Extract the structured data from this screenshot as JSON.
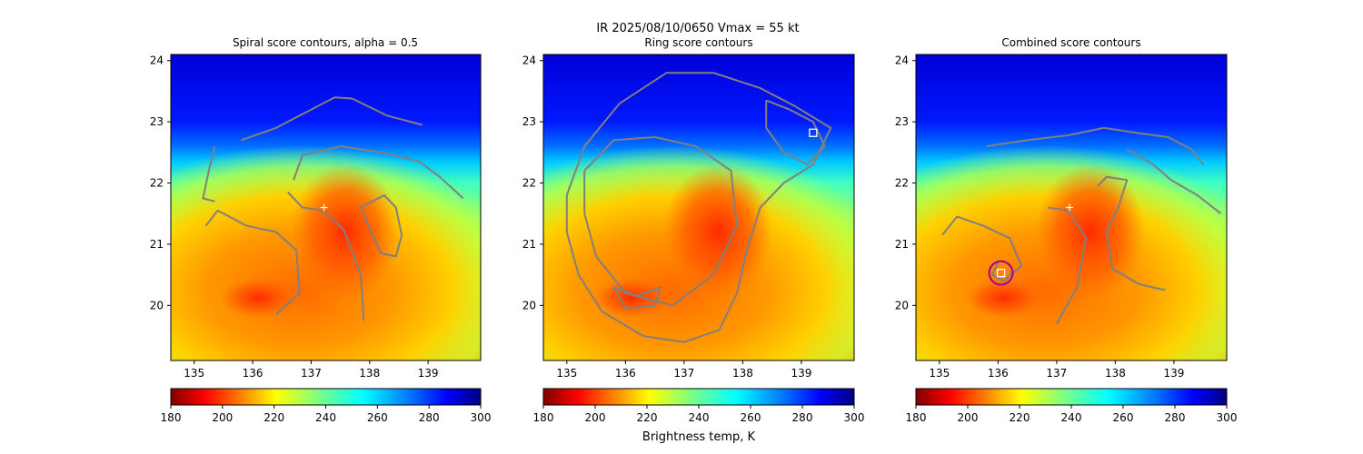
{
  "figure": {
    "suptitle": "IR  2025/08/10/0650    Vmax = 55 kt",
    "colorbar_label": "Brightness temp, K"
  },
  "chart_data": [
    {
      "type": "heatmap",
      "title": "Spiral score contours, alpha =  0.5",
      "xlim": [
        134.6,
        139.9
      ],
      "ylim": [
        19.1,
        24.1
      ],
      "xticks": [
        135,
        136,
        137,
        138,
        139
      ],
      "yticks": [
        20,
        21,
        22,
        23,
        24
      ],
      "colormap": "jet_r",
      "clim": [
        180,
        300
      ],
      "colorbar_ticks": [
        180,
        200,
        220,
        240,
        260,
        280,
        300
      ],
      "center_marker": {
        "x": 137.22,
        "y": 21.6,
        "symbol": "+"
      },
      "contours": [
        {
          "points": [
            [
              135.8,
              22.7
            ],
            [
              136.4,
              22.9
            ],
            [
              137.0,
              23.2
            ],
            [
              137.4,
              23.4
            ],
            [
              137.7,
              23.38
            ],
            [
              138.3,
              23.1
            ],
            [
              138.9,
              22.95
            ]
          ]
        },
        {
          "points": [
            [
              135.35,
              22.6
            ],
            [
              135.25,
              22.2
            ],
            [
              135.15,
              21.75
            ],
            [
              135.35,
              21.7
            ]
          ]
        },
        {
          "points": [
            [
              136.6,
              21.85
            ],
            [
              136.85,
              21.6
            ],
            [
              137.2,
              21.55
            ],
            [
              137.55,
              21.25
            ],
            [
              137.85,
              20.5
            ],
            [
              137.9,
              19.75
            ]
          ]
        },
        {
          "points": [
            [
              136.7,
              22.05
            ],
            [
              136.85,
              22.45
            ],
            [
              137.5,
              22.6
            ],
            [
              138.2,
              22.5
            ],
            [
              138.85,
              22.35
            ],
            [
              139.2,
              22.1
            ],
            [
              139.6,
              21.75
            ]
          ]
        },
        {
          "points": [
            [
              138.05,
              21.7
            ],
            [
              138.25,
              21.8
            ],
            [
              138.45,
              21.6
            ],
            [
              138.55,
              21.15
            ],
            [
              138.45,
              20.8
            ],
            [
              138.2,
              20.85
            ],
            [
              138.0,
              21.25
            ],
            [
              137.85,
              21.6
            ],
            [
              138.05,
              21.7
            ]
          ]
        },
        {
          "points": [
            [
              135.2,
              21.3
            ],
            [
              135.4,
              21.55
            ],
            [
              135.9,
              21.3
            ],
            [
              136.4,
              21.2
            ],
            [
              136.75,
              20.9
            ],
            [
              136.8,
              20.2
            ],
            [
              136.4,
              19.85
            ]
          ]
        }
      ]
    },
    {
      "type": "heatmap",
      "title": "Ring score contours",
      "xlim": [
        134.6,
        139.9
      ],
      "ylim": [
        19.1,
        24.1
      ],
      "xticks": [
        135,
        136,
        137,
        138,
        139
      ],
      "yticks": [
        20,
        21,
        22,
        23,
        24
      ],
      "colormap": "jet_r",
      "clim": [
        180,
        300
      ],
      "colorbar_ticks": [
        180,
        200,
        220,
        240,
        260,
        280,
        300
      ],
      "marker_square": {
        "x": 139.2,
        "y": 22.82
      },
      "contours": [
        {
          "points": [
            [
              135.0,
              21.8
            ],
            [
              135.3,
              22.6
            ],
            [
              135.9,
              23.3
            ],
            [
              136.7,
              23.8
            ],
            [
              137.5,
              23.8
            ],
            [
              138.3,
              23.55
            ],
            [
              138.9,
              23.25
            ],
            [
              139.5,
              22.9
            ],
            [
              139.2,
              22.3
            ],
            [
              138.7,
              22.0
            ],
            [
              138.3,
              21.6
            ],
            [
              138.1,
              21.0
            ],
            [
              137.9,
              20.2
            ],
            [
              137.6,
              19.6
            ],
            [
              137.0,
              19.4
            ],
            [
              136.3,
              19.5
            ],
            [
              135.6,
              19.9
            ],
            [
              135.2,
              20.5
            ],
            [
              135.0,
              21.2
            ],
            [
              135.0,
              21.8
            ]
          ]
        },
        {
          "points": [
            [
              135.3,
              22.2
            ],
            [
              135.8,
              22.7
            ],
            [
              136.5,
              22.75
            ],
            [
              137.2,
              22.6
            ],
            [
              137.8,
              22.2
            ],
            [
              137.9,
              21.3
            ],
            [
              137.5,
              20.5
            ],
            [
              136.8,
              20.0
            ],
            [
              136.0,
              20.2
            ],
            [
              135.5,
              20.8
            ],
            [
              135.3,
              21.5
            ],
            [
              135.3,
              22.2
            ]
          ]
        },
        {
          "points": [
            [
              138.4,
              23.35
            ],
            [
              138.8,
              23.2
            ],
            [
              139.2,
              23.0
            ],
            [
              139.4,
              22.6
            ],
            [
              139.1,
              22.3
            ],
            [
              138.7,
              22.5
            ],
            [
              138.4,
              22.9
            ],
            [
              138.4,
              23.35
            ]
          ]
        },
        {
          "points": [
            [
              135.8,
              20.3
            ],
            [
              136.2,
              20.15
            ],
            [
              136.6,
              20.3
            ],
            [
              136.5,
              20.0
            ],
            [
              136.0,
              19.95
            ],
            [
              135.8,
              20.3
            ]
          ]
        }
      ]
    },
    {
      "type": "heatmap",
      "title": "Combined score contours",
      "xlim": [
        134.6,
        139.9
      ],
      "ylim": [
        19.1,
        24.1
      ],
      "xticks": [
        135,
        136,
        137,
        138,
        139
      ],
      "yticks": [
        20,
        21,
        22,
        23,
        24
      ],
      "colormap": "jet_r",
      "clim": [
        180,
        300
      ],
      "colorbar_ticks": [
        180,
        200,
        220,
        240,
        260,
        280,
        300
      ],
      "center_marker": {
        "x": 137.22,
        "y": 21.6,
        "symbol": "+"
      },
      "marker_square": {
        "x": 136.05,
        "y": 20.53
      },
      "circle": {
        "x": 136.05,
        "y": 20.53,
        "r": 0.2
      },
      "contours": [
        {
          "points": [
            [
              135.8,
              22.6
            ],
            [
              136.5,
              22.7
            ],
            [
              137.2,
              22.78
            ],
            [
              137.8,
              22.9
            ],
            [
              138.5,
              22.8
            ],
            [
              138.9,
              22.75
            ],
            [
              139.3,
              22.55
            ],
            [
              139.5,
              22.3
            ]
          ]
        },
        {
          "points": [
            [
              138.2,
              22.55
            ],
            [
              138.65,
              22.3
            ],
            [
              138.95,
              22.05
            ],
            [
              139.4,
              21.8
            ],
            [
              139.8,
              21.5
            ]
          ]
        },
        {
          "points": [
            [
              136.85,
              21.6
            ],
            [
              137.2,
              21.55
            ],
            [
              137.5,
              21.1
            ],
            [
              137.35,
              20.3
            ],
            [
              137.0,
              19.7
            ]
          ]
        },
        {
          "points": [
            [
              137.7,
              21.95
            ],
            [
              137.85,
              22.1
            ],
            [
              138.2,
              22.05
            ],
            [
              138.05,
              21.6
            ],
            [
              137.85,
              21.2
            ],
            [
              137.95,
              20.6
            ],
            [
              138.4,
              20.35
            ],
            [
              138.85,
              20.25
            ]
          ]
        },
        {
          "points": [
            [
              135.05,
              21.15
            ],
            [
              135.3,
              21.45
            ],
            [
              135.75,
              21.3
            ],
            [
              136.2,
              21.1
            ],
            [
              136.4,
              20.65
            ],
            [
              136.1,
              20.4
            ],
            [
              135.9,
              20.5
            ],
            [
              136.0,
              20.7
            ]
          ]
        }
      ]
    }
  ]
}
